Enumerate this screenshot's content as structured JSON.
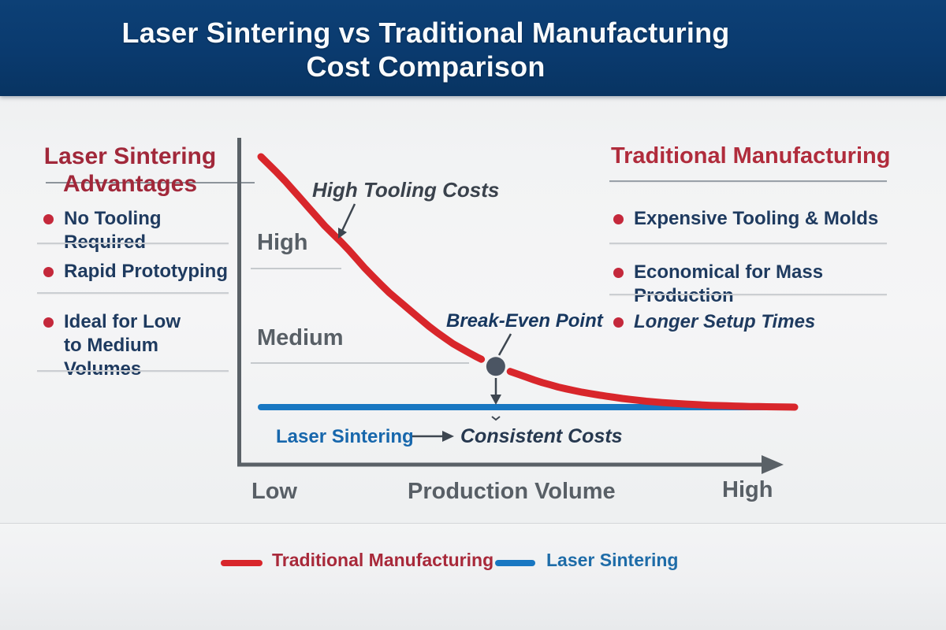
{
  "header": {
    "title_line1": "Laser Sintering vs Traditional Manufacturing",
    "title_line2": "Cost Comparison"
  },
  "left_panel": {
    "heading_line1": "Laser Sintering",
    "heading_line2": "Advantages",
    "items": [
      "No Tooling Required",
      "Rapid Prototyping",
      "Ideal for Low to Medium Volumes"
    ]
  },
  "right_panel": {
    "heading": "Traditional Manufacturing",
    "items": [
      "Expensive Tooling & Molds",
      "Economical for Mass Production",
      "Longer Setup Times"
    ]
  },
  "chart_data": {
    "type": "line",
    "title": "Laser Sintering vs Traditional Manufacturing Cost Comparison",
    "xlabel": "Production Volume",
    "ylabel": "",
    "x_tick_labels": [
      "Low",
      "High"
    ],
    "y_tick_labels": [
      "High",
      "Medium"
    ],
    "x_range": [
      0,
      100
    ],
    "y_range": [
      0,
      100
    ],
    "grid": false,
    "series": [
      {
        "name": "Traditional Manufacturing",
        "color": "#d8262b",
        "x": [
          0,
          4,
          8,
          12,
          16,
          20,
          24,
          28,
          32,
          36,
          40,
          44,
          48,
          52,
          56,
          60,
          64,
          68,
          72,
          76,
          80,
          84,
          88,
          92,
          96,
          100
        ],
        "values": [
          95,
          88,
          80,
          72,
          65,
          57,
          50,
          44,
          38,
          33,
          29,
          25.5,
          23,
          20.5,
          18.5,
          17,
          15.8,
          14.8,
          14,
          13.4,
          13,
          12.6,
          12.4,
          12.2,
          12.1,
          12
        ]
      },
      {
        "name": "Laser Sintering",
        "color": "#1877c2",
        "x": [
          0,
          100
        ],
        "values": [
          12,
          12
        ]
      }
    ],
    "annotations": [
      {
        "id": "high-tooling-costs",
        "label": "High Tooling Costs"
      },
      {
        "id": "break-even-point",
        "label": "Break-Even Point",
        "x": 44,
        "value": 25.5
      },
      {
        "id": "laser-sintering-series-label",
        "label": "Laser Sintering"
      },
      {
        "id": "consistent-costs",
        "label": "Consistent Costs"
      }
    ],
    "legend": {
      "position": "bottom",
      "entries": [
        {
          "label": "Traditional Manufacturing",
          "color": "#d8262b"
        },
        {
          "label": "Laser Sintering",
          "color": "#1877c2"
        }
      ]
    }
  },
  "colors": {
    "header_bg": "#0a3a6f",
    "title_text": "#f9fbfd",
    "heading_red_left": "#a1283a",
    "heading_red_right": "#b02c3c",
    "body_text_navy": "#1e3a5f",
    "bullet_red": "#c4283b",
    "axis_gray": "#5a6167",
    "traditional_red": "#d8262b",
    "laser_blue": "#1877c2",
    "break_even_dot": "#4b5563",
    "background": "#eff0f1"
  }
}
